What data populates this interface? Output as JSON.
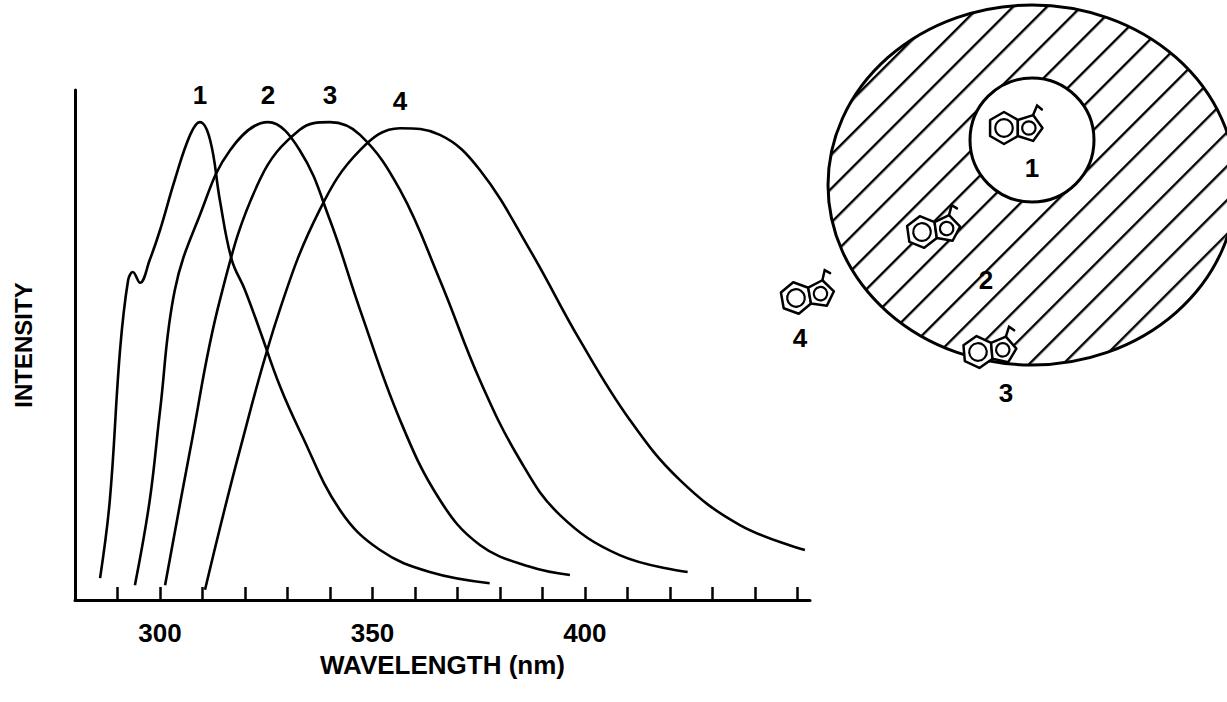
{
  "chart_data": {
    "type": "line",
    "xlabel": "WAVELENGTH (nm)",
    "ylabel": "INTENSITY",
    "xlim": [
      280,
      453
    ],
    "xticks": [
      300,
      350,
      400
    ],
    "ylim": [
      0,
      100
    ],
    "tick_labels": "x",
    "grid": false,
    "series": [
      {
        "name": "1",
        "color": "#000000",
        "x": [
          285.9,
          288.2,
          290.6,
          292.5,
          293.6,
          295.3,
          297.6,
          300,
          303.5,
          307.1,
          309.4,
          311.8,
          314.1,
          316.9,
          320,
          323.5,
          328.2,
          333,
          342.4,
          351.8,
          363.5,
          377.6
        ],
        "values": [
          4.3,
          19.6,
          49,
          62.7,
          64.3,
          62.2,
          66.7,
          72.5,
          82.4,
          91.2,
          93.7,
          90.2,
          78.4,
          66.7,
          60.8,
          52.9,
          42,
          33,
          17.6,
          9.8,
          5.5,
          3.3
        ]
      },
      {
        "name": "2",
        "color": "#000000",
        "x": [
          294.1,
          297.6,
          300,
          303.5,
          309.4,
          316.5,
          325.4,
          332.9,
          340,
          347.1,
          356.5,
          365.9,
          375.3,
          387.1,
          396.5
        ],
        "values": [
          2.9,
          19.6,
          37,
          60.8,
          75.5,
          88.2,
          93.7,
          88.2,
          74.5,
          56.9,
          35.3,
          19.6,
          10.8,
          6.5,
          4.9
        ]
      },
      {
        "name": "3",
        "color": "#000000",
        "x": [
          301.2,
          307.1,
          314.1,
          323.5,
          332.9,
          340,
          347.1,
          356.5,
          365.9,
          375.3,
          384.7,
          394.1,
          408.2,
          424.2
        ],
        "values": [
          2.9,
          29.4,
          58.8,
          82.4,
          92.2,
          93.7,
          91.2,
          80.4,
          62.7,
          43.1,
          27.5,
          16.7,
          8.8,
          5.5
        ]
      },
      {
        "name": "4",
        "color": "#000000",
        "x": [
          310.6,
          318.8,
          328.2,
          337.6,
          347.1,
          356.5,
          365.9,
          375.3,
          387.1,
          398.8,
          410.6,
          422.4,
          436.5,
          451.8
        ],
        "values": [
          2,
          29.4,
          56.9,
          76.5,
          88.2,
          92.5,
          91.2,
          84.3,
          68.6,
          51,
          35.3,
          23.5,
          14.7,
          9.8
        ]
      }
    ]
  },
  "diagram": {
    "labels": [
      "1",
      "2",
      "3",
      "4"
    ]
  }
}
